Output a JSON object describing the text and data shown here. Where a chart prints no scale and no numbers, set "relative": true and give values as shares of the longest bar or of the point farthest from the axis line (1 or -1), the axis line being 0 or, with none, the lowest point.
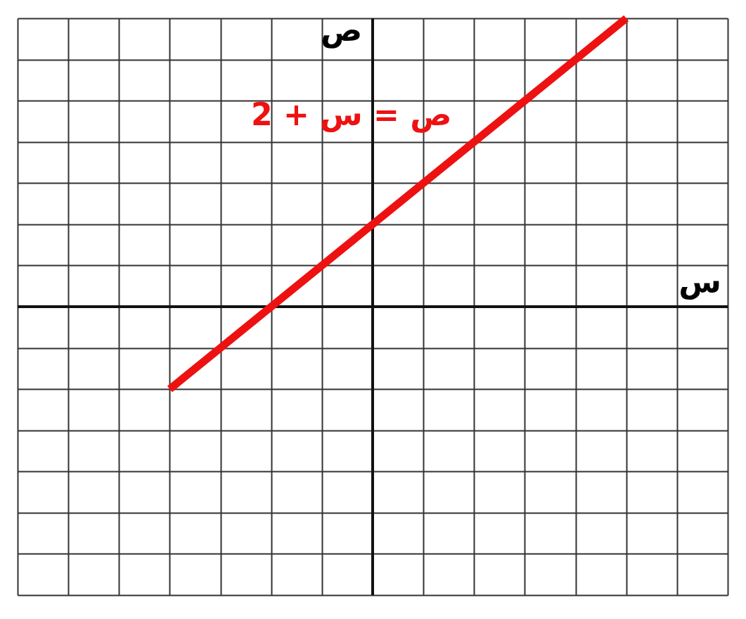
{
  "chart_data": {
    "type": "line",
    "relative": true,
    "xlabel": "س",
    "ylabel": "ص",
    "annotations": [
      "ص = س + 2"
    ],
    "categories": [
      null,
      null,
      null,
      null,
      null,
      null,
      null,
      null,
      null,
      null,
      null,
      null,
      null,
      null,
      null
    ],
    "series": [
      {
        "values": [
          null,
          null,
          null,
          -0.2857,
          null,
          null,
          null,
          null,
          null,
          null,
          null,
          null,
          1,
          null,
          null
        ],
        "color": "#ee1111"
      }
    ],
    "grid": true,
    "line_style": "solid"
  }
}
